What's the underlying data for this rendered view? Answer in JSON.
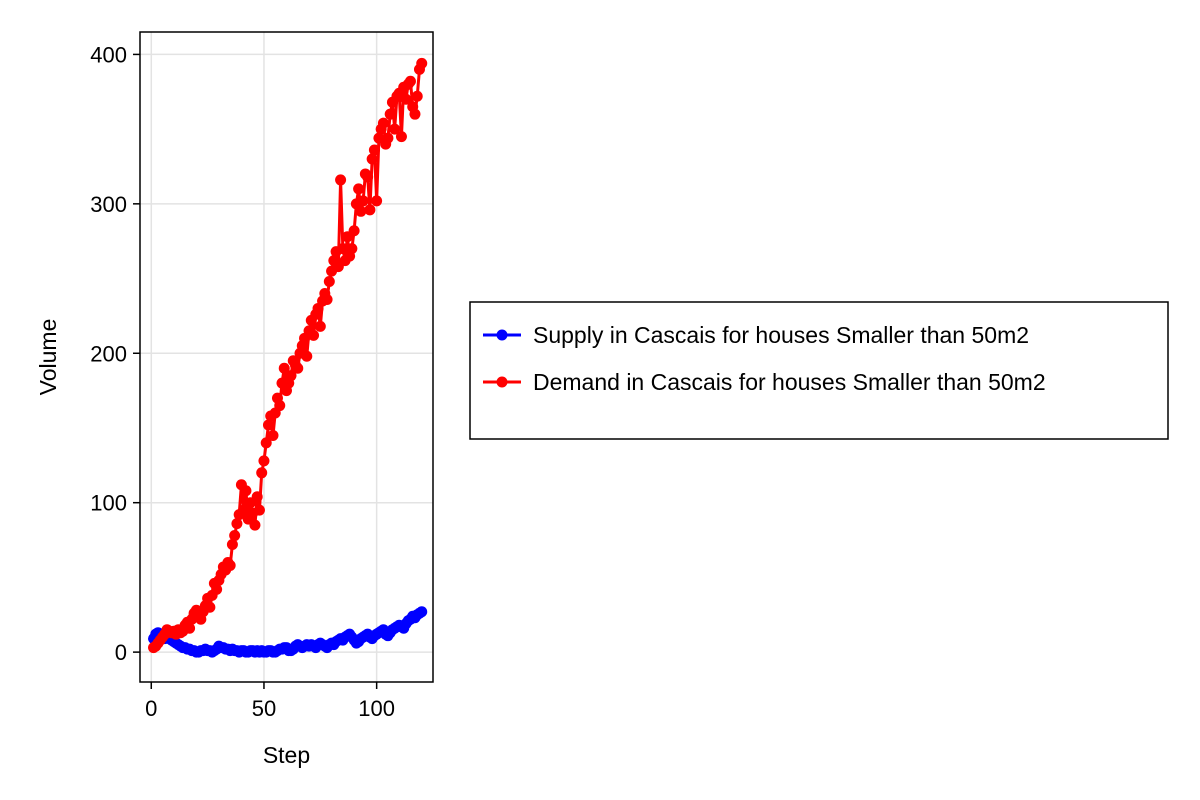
{
  "chart_data": {
    "type": "line",
    "title": "",
    "xlabel": "Step",
    "ylabel": "Volume",
    "xlim": [
      -5,
      125
    ],
    "ylim": [
      -20,
      415
    ],
    "xticks": [
      0,
      50,
      100
    ],
    "yticks": [
      0,
      100,
      200,
      300,
      400
    ],
    "grid": true,
    "legend_position": "right",
    "series": [
      {
        "name": "Supply in Cascais for houses Smaller than 50m2",
        "color": "#0000ff",
        "marker": "circle",
        "x": [
          1,
          2,
          3,
          4,
          5,
          6,
          7,
          8,
          9,
          10,
          11,
          12,
          13,
          14,
          15,
          16,
          17,
          18,
          19,
          20,
          21,
          22,
          23,
          24,
          25,
          26,
          27,
          28,
          29,
          30,
          31,
          32,
          33,
          34,
          35,
          36,
          37,
          38,
          39,
          40,
          41,
          42,
          43,
          44,
          45,
          46,
          47,
          48,
          49,
          50,
          51,
          52,
          53,
          54,
          55,
          56,
          57,
          58,
          59,
          60,
          61,
          62,
          63,
          64,
          65,
          66,
          67,
          68,
          69,
          70,
          71,
          72,
          73,
          74,
          75,
          76,
          77,
          78,
          79,
          80,
          81,
          82,
          83,
          84,
          85,
          86,
          87,
          88,
          89,
          90,
          91,
          92,
          93,
          94,
          95,
          96,
          97,
          98,
          99,
          100,
          101,
          102,
          103,
          104,
          105,
          106,
          107,
          108,
          109,
          110,
          111,
          112,
          113,
          114,
          115,
          116,
          117,
          118,
          119,
          120
        ],
        "y": [
          9,
          12,
          13,
          11,
          10,
          9,
          10,
          9,
          8,
          7,
          6,
          5,
          4,
          3,
          3,
          2,
          2,
          1,
          1,
          0,
          0,
          1,
          1,
          2,
          1,
          1,
          0,
          1,
          2,
          4,
          3,
          3,
          2,
          2,
          1,
          2,
          1,
          1,
          0,
          1,
          1,
          0,
          0,
          1,
          1,
          0,
          1,
          0,
          1,
          0,
          0,
          1,
          1,
          0,
          0,
          1,
          2,
          2,
          3,
          3,
          1,
          1,
          2,
          4,
          5,
          4,
          3,
          4,
          5,
          4,
          5,
          4,
          3,
          5,
          6,
          5,
          4,
          3,
          5,
          6,
          5,
          7,
          8,
          9,
          8,
          10,
          11,
          12,
          10,
          8,
          6,
          7,
          9,
          10,
          11,
          12,
          10,
          9,
          11,
          12,
          13,
          14,
          15,
          12,
          11,
          13,
          15,
          16,
          17,
          18,
          17,
          16,
          19,
          21,
          22,
          24,
          23,
          25,
          26,
          27
        ]
      },
      {
        "name": "Demand in Cascais for houses Smaller than 50m2",
        "color": "#ff0000",
        "marker": "circle",
        "x": [
          1,
          2,
          3,
          4,
          5,
          6,
          7,
          8,
          9,
          10,
          11,
          12,
          13,
          14,
          15,
          16,
          17,
          18,
          19,
          20,
          21,
          22,
          23,
          24,
          25,
          26,
          27,
          28,
          29,
          30,
          31,
          32,
          33,
          34,
          35,
          36,
          37,
          38,
          39,
          40,
          41,
          42,
          43,
          44,
          45,
          46,
          47,
          48,
          49,
          50,
          51,
          52,
          53,
          54,
          55,
          56,
          57,
          58,
          59,
          60,
          61,
          62,
          63,
          64,
          65,
          66,
          67,
          68,
          69,
          70,
          71,
          72,
          73,
          74,
          75,
          76,
          77,
          78,
          79,
          80,
          81,
          82,
          83,
          84,
          85,
          86,
          87,
          88,
          89,
          90,
          91,
          92,
          93,
          94,
          95,
          96,
          97,
          98,
          99,
          100,
          101,
          102,
          103,
          104,
          105,
          106,
          107,
          108,
          109,
          110,
          111,
          112,
          113,
          114,
          115,
          116,
          117,
          118,
          119,
          120
        ],
        "y": [
          3,
          4,
          6,
          8,
          10,
          12,
          15,
          14,
          13,
          14,
          12,
          15,
          13,
          14,
          18,
          20,
          16,
          22,
          26,
          28,
          25,
          22,
          27,
          31,
          36,
          30,
          38,
          46,
          42,
          48,
          52,
          57,
          55,
          60,
          58,
          72,
          78,
          86,
          92,
          112,
          95,
          108,
          89,
          100,
          93,
          85,
          104,
          95,
          120,
          128,
          140,
          152,
          158,
          145,
          160,
          170,
          165,
          180,
          190,
          175,
          180,
          185,
          195,
          192,
          190,
          200,
          205,
          210,
          198,
          215,
          222,
          212,
          226,
          230,
          218,
          235,
          240,
          236,
          248,
          255,
          262,
          268,
          258,
          316,
          270,
          262,
          278,
          265,
          270,
          282,
          300,
          310,
          295,
          302,
          320,
          318,
          296,
          330,
          336,
          302,
          344,
          350,
          354,
          340,
          344,
          360,
          368,
          350,
          372,
          374,
          345,
          378,
          370,
          380,
          382,
          365,
          360,
          372,
          390,
          394
        ]
      }
    ]
  }
}
